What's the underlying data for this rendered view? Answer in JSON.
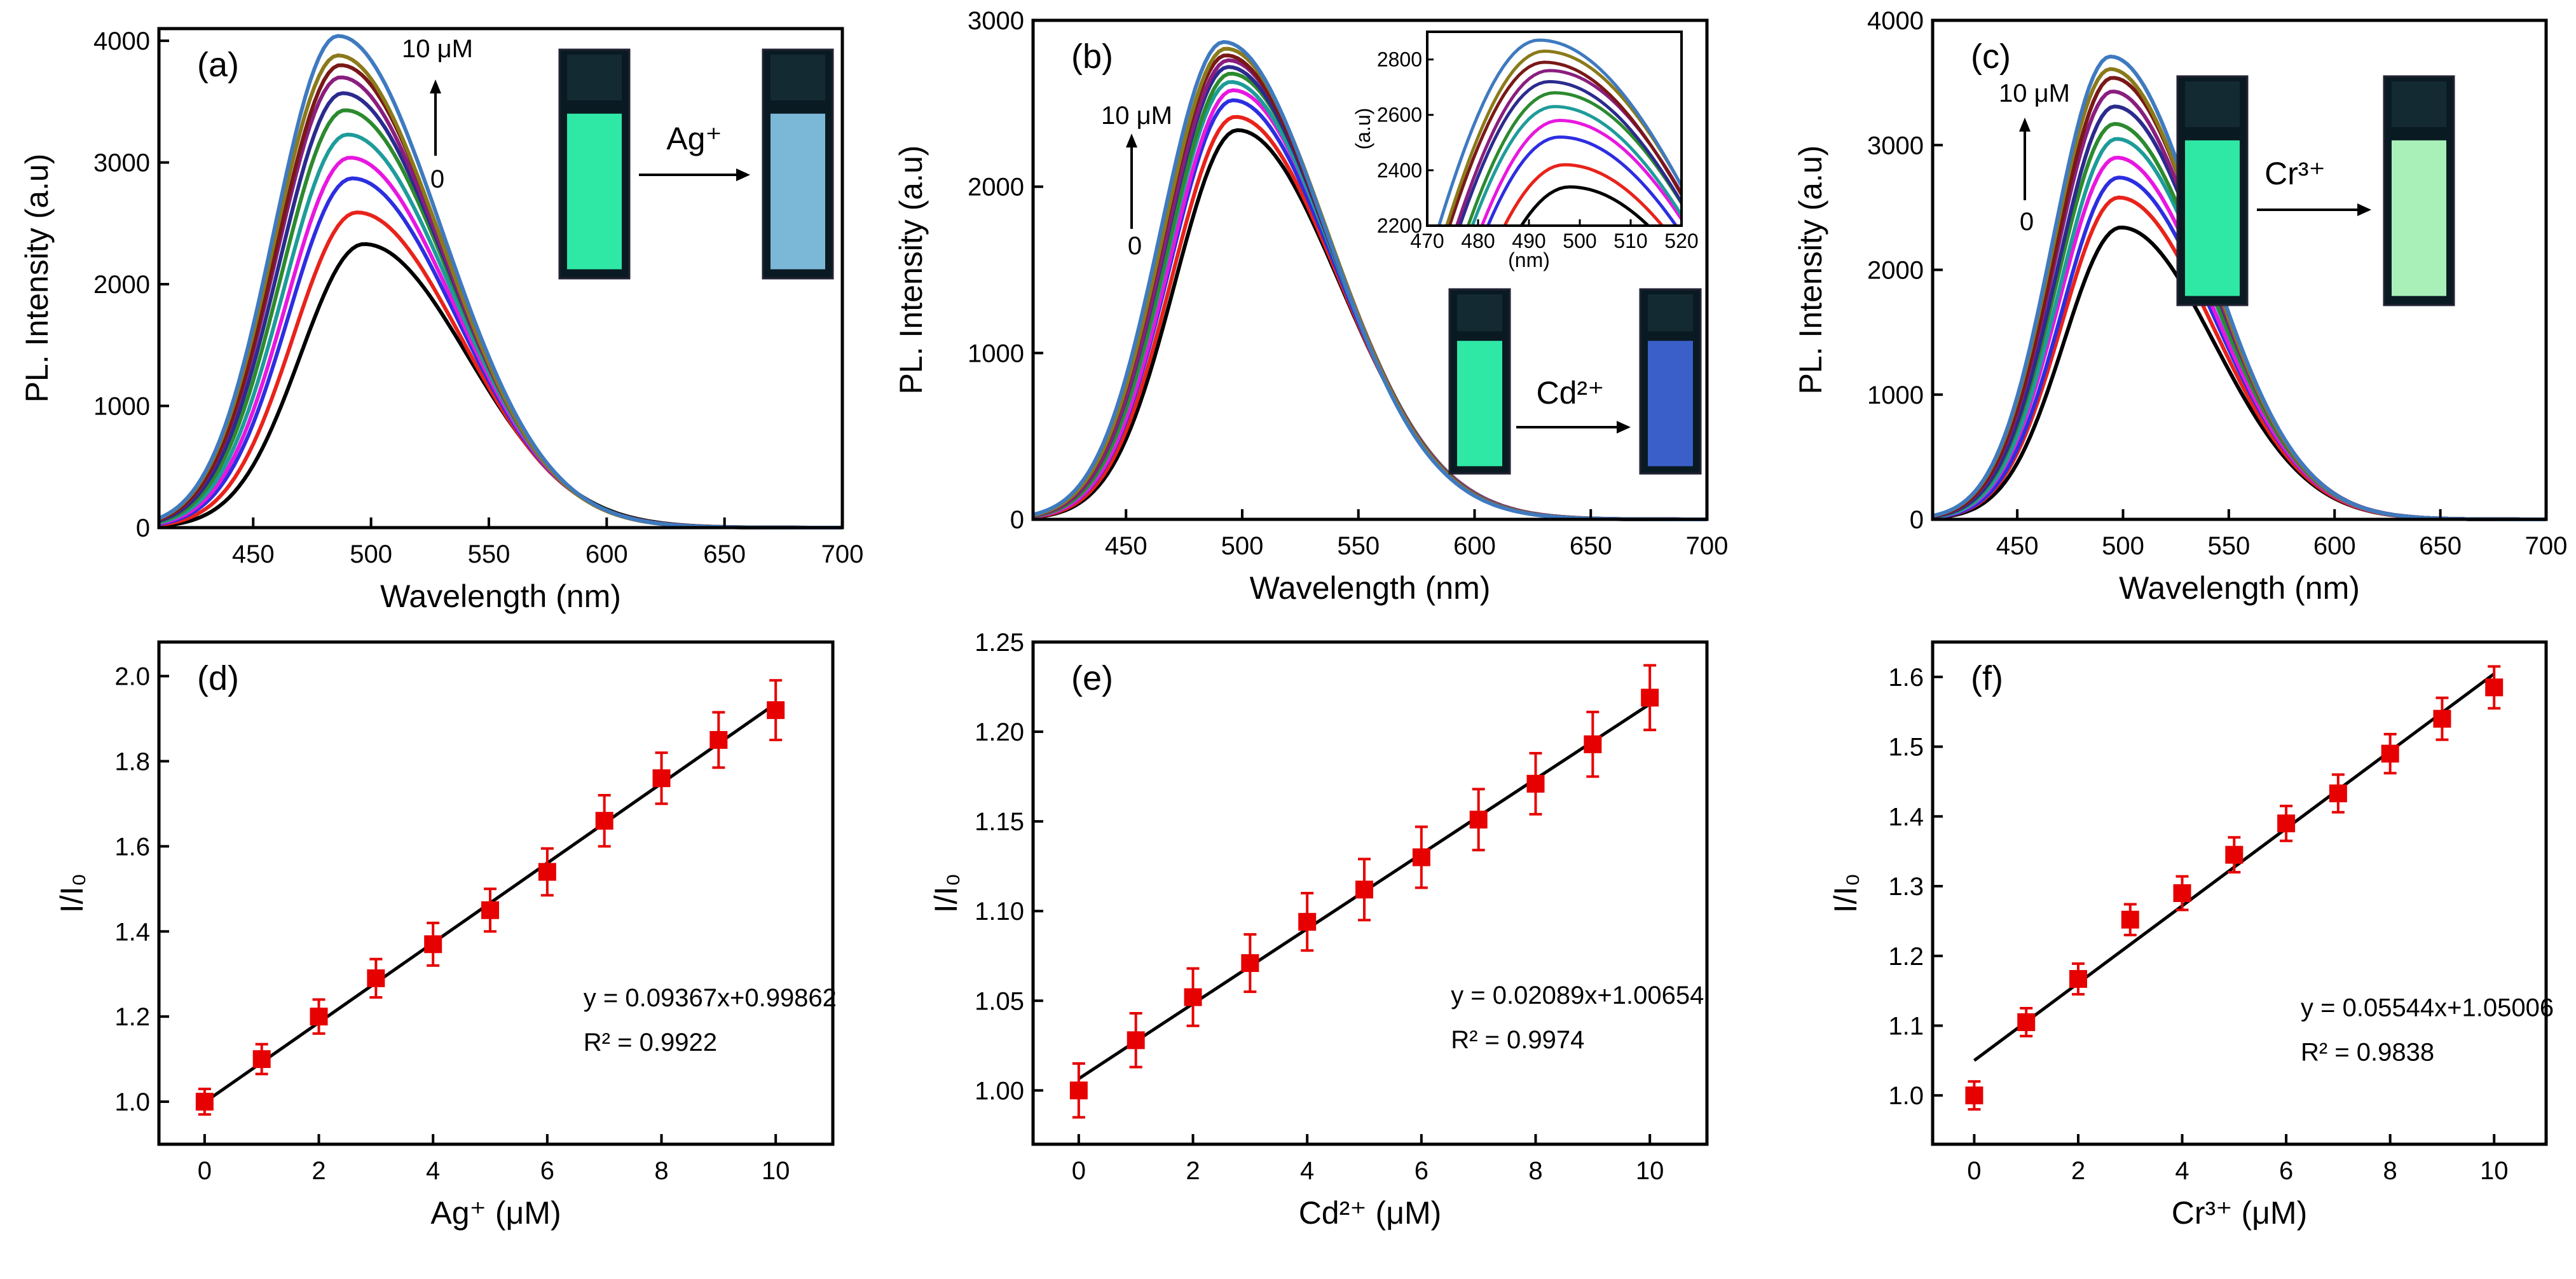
{
  "chart_data": [
    {
      "id": "a",
      "type": "line",
      "panel_label": "(a)",
      "xlabel": "Wavelength (nm)",
      "ylabel": "PL. Intensity (a.u)",
      "xlim": [
        410,
        700
      ],
      "ylim": [
        0,
        4100
      ],
      "xticks": [
        "450",
        "500",
        "550",
        "600",
        "650",
        "700"
      ],
      "yticks": [
        "0",
        "1000",
        "2000",
        "3000",
        "4000"
      ],
      "peaks_nm": [
        497,
        494,
        492,
        491,
        490,
        489,
        488,
        487,
        487,
        486,
        486
      ],
      "peak_intensities": [
        2330,
        2590,
        2870,
        3040,
        3230,
        3430,
        3570,
        3700,
        3800,
        3880,
        4040
      ],
      "legend": {
        "top_label": "10 μM",
        "bottom_label": "0"
      },
      "cuvette_arrow_label": "Ag⁺",
      "cuvette_before_color": "#2fe8a6",
      "cuvette_after_color": "#7bb8d8"
    },
    {
      "id": "b",
      "type": "line",
      "panel_label": "(b)",
      "xlabel": "Wavelength (nm)",
      "ylabel": "PL. Intensity (a.u)",
      "xlim": [
        410,
        700
      ],
      "ylim": [
        0,
        3000
      ],
      "xticks": [
        "450",
        "500",
        "550",
        "600",
        "650",
        "700"
      ],
      "yticks": [
        "0",
        "1000",
        "2000",
        "3000"
      ],
      "peaks_nm": [
        498,
        497,
        496,
        496,
        495,
        495,
        494,
        494,
        493,
        493,
        492
      ],
      "peak_intensities": [
        2340,
        2420,
        2520,
        2580,
        2630,
        2680,
        2720,
        2760,
        2790,
        2830,
        2870
      ],
      "legend": {
        "top_label": "10 μM",
        "bottom_label": "0"
      },
      "cuvette_arrow_label": "Cd²⁺",
      "cuvette_before_color": "#2fe8a6",
      "cuvette_after_color": "#3a5fc8",
      "inset": {
        "xlabel": "(nm)",
        "ylabel": "(a.u)",
        "xlim": [
          470,
          520
        ],
        "ylim": [
          2200,
          2900
        ],
        "xticks": [
          "470",
          "480",
          "490",
          "500",
          "510",
          "520"
        ],
        "yticks": [
          "2200",
          "2400",
          "2600",
          "2800"
        ]
      }
    },
    {
      "id": "c",
      "type": "line",
      "panel_label": "(c)",
      "xlabel": "Wavelength (nm)",
      "ylabel": "PL. Intensity (a.u)",
      "xlim": [
        410,
        700
      ],
      "ylim": [
        0,
        4000
      ],
      "xticks": [
        "450",
        "500",
        "550",
        "600",
        "650",
        "700"
      ],
      "yticks": [
        "0",
        "1000",
        "2000",
        "3000",
        "4000"
      ],
      "peaks_nm": [
        499,
        498,
        498,
        497,
        497,
        496,
        496,
        495,
        495,
        494,
        494
      ],
      "peak_intensities": [
        2340,
        2580,
        2740,
        2900,
        3050,
        3170,
        3310,
        3430,
        3540,
        3610,
        3710
      ],
      "legend": {
        "top_label": "10 μM",
        "bottom_label": "0"
      },
      "cuvette_arrow_label": "Cr³⁺",
      "cuvette_before_color": "#2fe8a6",
      "cuvette_after_color": "#a8f0b8"
    },
    {
      "id": "d",
      "type": "scatter",
      "panel_label": "(d)",
      "xlabel": "Ag⁺ (μM)",
      "ylabel": "I/I₀",
      "xlim": [
        -0.8,
        11
      ],
      "ylim": [
        0.9,
        2.08
      ],
      "xticks": [
        "0",
        "2",
        "4",
        "6",
        "8",
        "10"
      ],
      "yticks": [
        "1.0",
        "1.2",
        "1.4",
        "1.6",
        "1.8",
        "2.0"
      ],
      "x": [
        0,
        1,
        2,
        3,
        4,
        5,
        6,
        7,
        8,
        9,
        10
      ],
      "y": [
        1.0,
        1.1,
        1.2,
        1.29,
        1.37,
        1.45,
        1.54,
        1.66,
        1.76,
        1.85,
        1.92
      ],
      "err": [
        0.03,
        0.035,
        0.04,
        0.045,
        0.05,
        0.05,
        0.055,
        0.06,
        0.06,
        0.065,
        0.07
      ],
      "fit": {
        "slope": 0.09367,
        "intercept": 0.99862
      },
      "equation": "y = 0.09367x+0.99862",
      "r2_label": "R² = 0.9922"
    },
    {
      "id": "e",
      "type": "scatter",
      "panel_label": "(e)",
      "xlabel": "Cd²⁺ (μM)",
      "ylabel": "I/I₀",
      "xlim": [
        -0.8,
        11
      ],
      "ylim": [
        0.97,
        1.25
      ],
      "xticks": [
        "0",
        "2",
        "4",
        "6",
        "8",
        "10"
      ],
      "yticks": [
        "1.00",
        "1.05",
        "1.10",
        "1.15",
        "1.20",
        "1.25"
      ],
      "x": [
        0,
        1,
        2,
        3,
        4,
        5,
        6,
        7,
        8,
        9,
        10
      ],
      "y": [
        1.0,
        1.028,
        1.052,
        1.071,
        1.094,
        1.112,
        1.13,
        1.151,
        1.171,
        1.193,
        1.219
      ],
      "err": [
        0.015,
        0.015,
        0.016,
        0.016,
        0.016,
        0.017,
        0.017,
        0.017,
        0.017,
        0.018,
        0.018
      ],
      "fit": {
        "slope": 0.02089,
        "intercept": 1.00654
      },
      "equation": "y = 0.02089x+1.00654",
      "r2_label": "R² = 0.9974"
    },
    {
      "id": "f",
      "type": "scatter",
      "panel_label": "(f)",
      "xlabel": "Cr³⁺ (μM)",
      "ylabel": "I/I₀",
      "xlim": [
        -0.8,
        11
      ],
      "ylim": [
        0.93,
        1.65
      ],
      "xticks": [
        "0",
        "2",
        "4",
        "6",
        "8",
        "10"
      ],
      "yticks": [
        "1.0",
        "1.1",
        "1.2",
        "1.3",
        "1.4",
        "1.5",
        "1.6"
      ],
      "x": [
        0,
        1,
        2,
        3,
        4,
        5,
        6,
        7,
        8,
        9,
        10
      ],
      "y": [
        1.0,
        1.105,
        1.167,
        1.252,
        1.29,
        1.345,
        1.39,
        1.433,
        1.49,
        1.54,
        1.585
      ],
      "err": [
        0.02,
        0.02,
        0.022,
        0.022,
        0.024,
        0.025,
        0.025,
        0.027,
        0.028,
        0.03,
        0.03
      ],
      "fit": {
        "slope": 0.05544,
        "intercept": 1.05006
      },
      "equation": "y = 0.05544x+1.05006",
      "r2_label": "R² = 0.9838"
    }
  ],
  "series_colors": [
    "#000000",
    "#e8231b",
    "#2d2ee0",
    "#e817e0",
    "#1d9c9a",
    "#2c8a2e",
    "#2b2b8e",
    "#8a1e7e",
    "#7a1818",
    "#8a7a1a",
    "#3f7ac0"
  ],
  "marker_color": "#e60000",
  "fit_color": "#000000"
}
